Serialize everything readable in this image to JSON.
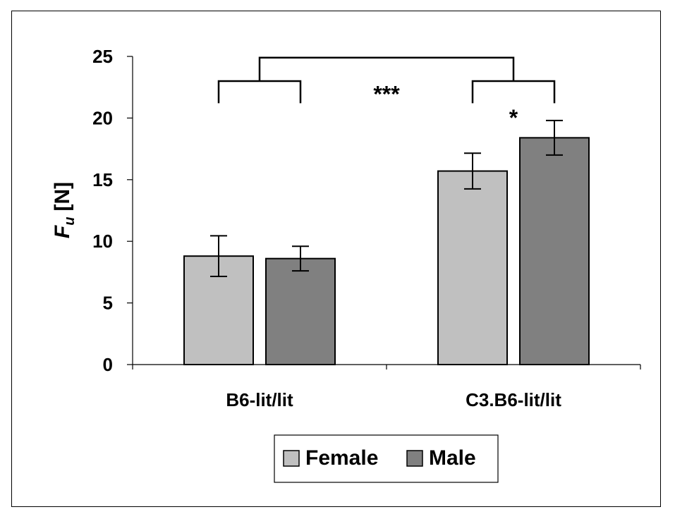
{
  "chart_data": {
    "type": "bar",
    "categories": [
      "B6-lit/lit",
      "C3.B6-lit/lit"
    ],
    "series": [
      {
        "name": "Female",
        "values": [
          8.8,
          15.7
        ],
        "errors": [
          1.65,
          1.45
        ],
        "color": "#c0c0c0"
      },
      {
        "name": "Male",
        "values": [
          8.6,
          18.4
        ],
        "errors": [
          1.0,
          1.4
        ],
        "color": "#808080"
      }
    ],
    "ylabel_main": "F",
    "ylabel_sub": "u",
    "ylabel_unit": "[N]",
    "ylim": [
      0,
      25
    ],
    "yticks": [
      0,
      5,
      10,
      15,
      20,
      25
    ],
    "significance": [
      {
        "label": "***",
        "between": "categories"
      },
      {
        "label": "*",
        "between": "C3.B6-lit/lit female vs male"
      }
    ],
    "legend_position": "bottom-center",
    "grid": false
  }
}
